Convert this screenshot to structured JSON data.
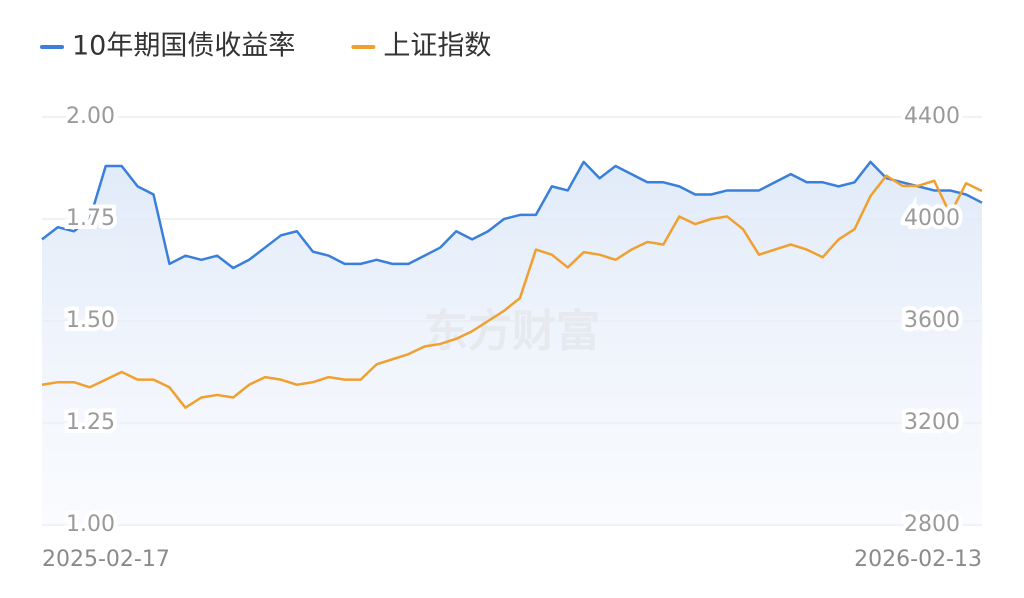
{
  "chart_data": {
    "type": "line",
    "watermark": "东方财富",
    "categories": [
      "2025-02-17",
      null,
      null,
      null,
      null,
      null,
      null,
      null,
      null,
      null,
      null,
      null,
      null,
      null,
      null,
      null,
      null,
      null,
      null,
      null,
      null,
      null,
      null,
      null,
      null,
      null,
      null,
      null,
      null,
      null,
      null,
      null,
      null,
      null,
      null,
      null,
      null,
      null,
      null,
      null,
      null,
      null,
      null,
      null,
      null,
      null,
      null,
      null,
      null,
      null,
      null,
      null,
      null,
      null,
      null,
      null,
      null,
      null,
      null,
      "2026-02-13"
    ],
    "series": [
      {
        "name": "10年期国债收益率",
        "color": "#3a7fdb",
        "values": [
          1.7,
          1.73,
          1.72,
          1.75,
          1.88,
          1.88,
          1.83,
          1.81,
          1.64,
          1.66,
          1.65,
          1.66,
          1.63,
          1.65,
          1.68,
          1.71,
          1.72,
          1.67,
          1.66,
          1.64,
          1.64,
          1.65,
          1.64,
          1.64,
          1.66,
          1.68,
          1.72,
          1.7,
          1.72,
          1.75,
          1.76,
          1.76,
          1.83,
          1.82,
          1.89,
          1.85,
          1.88,
          1.86,
          1.84,
          1.84,
          1.83,
          1.81,
          1.81,
          1.82,
          1.82,
          1.82,
          1.84,
          1.86,
          1.84,
          1.84,
          1.83,
          1.84,
          1.89,
          1.85,
          1.84,
          1.83,
          1.82,
          1.82,
          1.81,
          1.79
        ]
      },
      {
        "name": "上证指数",
        "color": "#f0a030",
        "axis": "y2",
        "values": [
          3350,
          3360,
          3360,
          3340,
          3370,
          3400,
          3370,
          3370,
          3340,
          3260,
          3300,
          3310,
          3300,
          3350,
          3380,
          3370,
          3350,
          3360,
          3380,
          3370,
          3370,
          3430,
          3450,
          3470,
          3500,
          3510,
          3530,
          3560,
          3600,
          3640,
          3690,
          3880,
          3860,
          3810,
          3870,
          3860,
          3840,
          3880,
          3910,
          3900,
          4010,
          3980,
          4000,
          4010,
          3960,
          3860,
          3880,
          3900,
          3880,
          3850,
          3920,
          3960,
          4090,
          4170,
          4130,
          4130,
          4150,
          4020,
          4140,
          4110
        ]
      }
    ],
    "ylim": [
      1.0,
      2.0
    ],
    "yticks": [
      {
        "value": 1,
        "label": "1.00"
      },
      {
        "value": 1.25,
        "label": "1.25"
      },
      {
        "value": 1.5,
        "label": "1.50"
      },
      {
        "value": 1.75,
        "label": "1.75"
      },
      {
        "value": 2,
        "label": "2.00"
      }
    ],
    "y2lim": [
      2800,
      4400
    ],
    "y2ticks": [
      2800,
      3200,
      3600,
      4000,
      4400
    ],
    "grid": true
  }
}
